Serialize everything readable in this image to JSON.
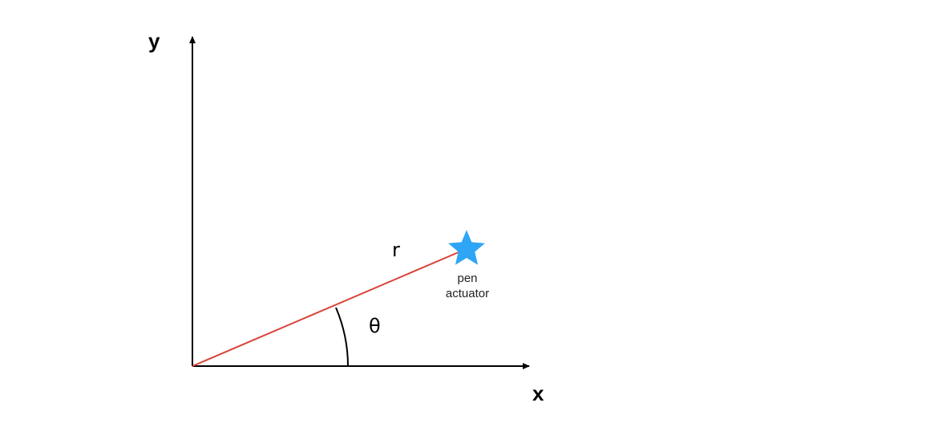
{
  "axes": {
    "x_label": "x",
    "y_label": "y"
  },
  "labels": {
    "radius": "r",
    "angle": "θ",
    "actuator_line1": "pen",
    "actuator_line2": "actuator"
  },
  "colors": {
    "axes": "#000000",
    "radius_line": "#d9443a",
    "star": "#2ea6f5"
  },
  "icons": {
    "actuator_marker": "star-icon"
  }
}
